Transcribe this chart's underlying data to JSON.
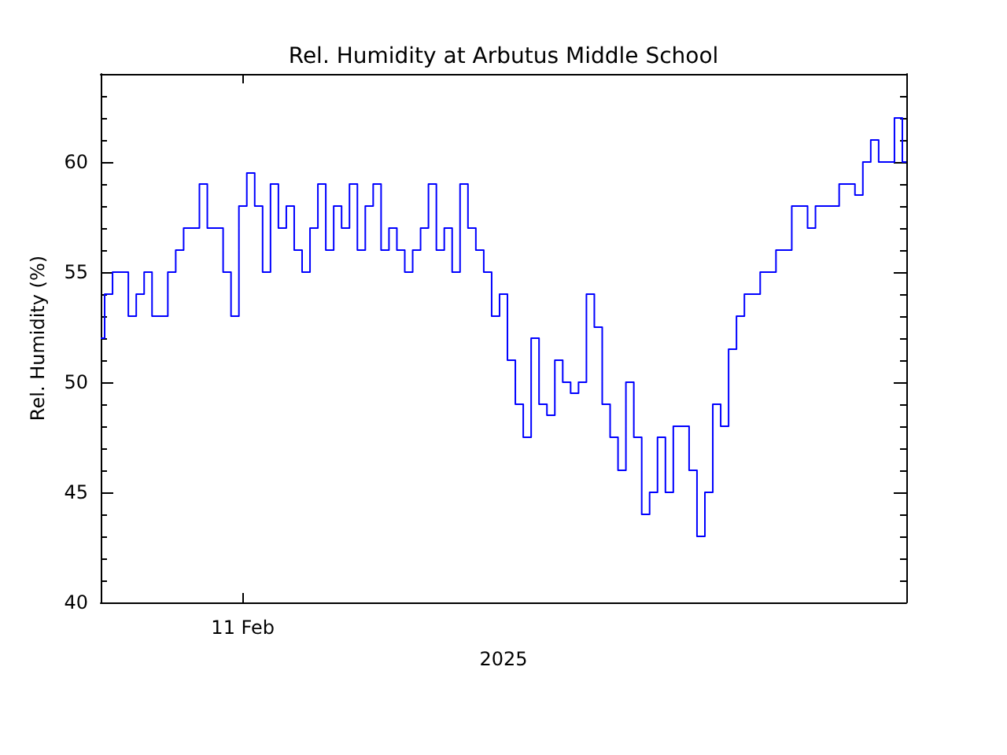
{
  "chart_data": {
    "type": "step",
    "title": "Rel. Humidity at Arbutus Middle School",
    "xlabel": "2025",
    "ylabel": "Rel. Humidity (%)",
    "marker": "none",
    "ylim": [
      40,
      64
    ],
    "yticks": [
      40,
      45,
      50,
      55,
      60
    ],
    "categories": [
      null,
      null,
      null,
      null,
      null,
      null,
      null,
      null,
      null,
      null,
      null,
      null,
      null,
      null,
      null,
      null,
      null,
      null,
      "11 Feb",
      null,
      null,
      null,
      null,
      null,
      null,
      null,
      null,
      null,
      null,
      null,
      null,
      null,
      null,
      null,
      null,
      null,
      null,
      null,
      null,
      null,
      null,
      null,
      null,
      null,
      null,
      null,
      null,
      null,
      null,
      null,
      null,
      null,
      null,
      null,
      null,
      null,
      null,
      null,
      null,
      null,
      null,
      null,
      null,
      null,
      null,
      null,
      null,
      null,
      null,
      null,
      null,
      null,
      null,
      null,
      null,
      null,
      null,
      null,
      null,
      null,
      null,
      null,
      null,
      null,
      null,
      null,
      null,
      null,
      null,
      null,
      null,
      null,
      null,
      null,
      null,
      null,
      null,
      null,
      null,
      null,
      null,
      null,
      null
    ],
    "series": [
      {
        "color": "#0000ff",
        "values": [
          52,
          54,
          55,
          55,
          53,
          54,
          55,
          53,
          53,
          55,
          56,
          57,
          57,
          59,
          57,
          57,
          55,
          53,
          58,
          59.5,
          58,
          55,
          59,
          57,
          58,
          56,
          55,
          57,
          59,
          56,
          58,
          57,
          59,
          56,
          58,
          59,
          56,
          57,
          56,
          55,
          56,
          57,
          59,
          56,
          57,
          55,
          59,
          57,
          56,
          55,
          53,
          54,
          51,
          49,
          47.5,
          52,
          49,
          48.5,
          51,
          50,
          49.5,
          50,
          54,
          52.5,
          49,
          47.5,
          46,
          50,
          47.5,
          44,
          45,
          47.5,
          45,
          48,
          48,
          46,
          43,
          45,
          49,
          48,
          51.5,
          53,
          54,
          54,
          55,
          55,
          56,
          56,
          58,
          58,
          57,
          58,
          58,
          58,
          59,
          59,
          58.5,
          60,
          61,
          60,
          60,
          62,
          60
        ]
      }
    ]
  }
}
